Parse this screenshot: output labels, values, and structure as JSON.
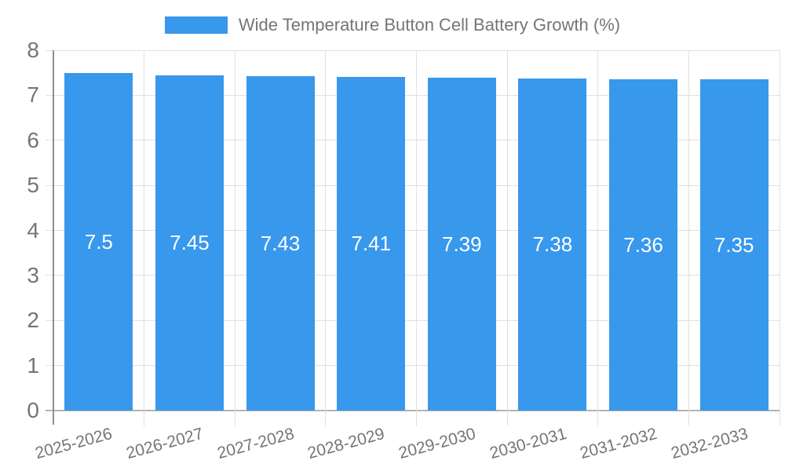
{
  "chart_data": {
    "type": "bar",
    "series_name": "Wide Temperature Button Cell Battery Growth (%)",
    "categories": [
      "2025-2026",
      "2026-2027",
      "2027-2028",
      "2028-2029",
      "2029-2030",
      "2030-2031",
      "2031-2032",
      "2032-2033"
    ],
    "values": [
      7.5,
      7.45,
      7.43,
      7.41,
      7.39,
      7.38,
      7.36,
      7.35
    ],
    "value_labels": [
      "7.5",
      "7.45",
      "7.43",
      "7.41",
      "7.39",
      "7.38",
      "7.36",
      "7.35"
    ],
    "ylim": [
      0,
      8
    ],
    "ytick_interval": 1,
    "yticks": [
      0,
      1,
      2,
      3,
      4,
      5,
      6,
      7,
      8
    ],
    "grid": true,
    "legend_position": "top-center",
    "value_label_position": "inside-center",
    "colors": {
      "bar": "#3898EC",
      "value_label": "#FFFFFF",
      "axis_text": "#757575",
      "gridline": "#E0E0E0",
      "axis_line": "#8F8F8F",
      "baseline": "#B3B3B3",
      "background": "#FFFFFF"
    }
  }
}
